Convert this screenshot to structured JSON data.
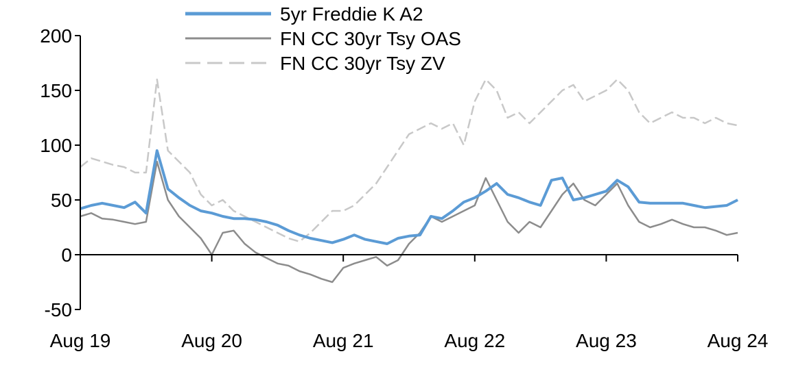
{
  "chart_data": {
    "type": "line",
    "title": "",
    "xlabel": "",
    "ylabel": "",
    "ylim": [
      -50,
      200
    ],
    "yticks": [
      "200",
      "150",
      "100",
      "50",
      "0",
      "-50"
    ],
    "ytick_values": [
      200,
      150,
      100,
      50,
      0,
      -50
    ],
    "xticks": [
      "Aug 19",
      "Aug 20",
      "Aug 21",
      "Aug 22",
      "Aug 23",
      "Aug 24"
    ],
    "x_frequency": "monthly, Aug 2019 to Aug 2024",
    "legend_position": "top-center",
    "series": [
      {
        "name": "5yr Freddie K A2",
        "color": "#5b9bd5",
        "style": "solid-thick",
        "values": [
          42,
          45,
          47,
          45,
          43,
          48,
          38,
          95,
          60,
          52,
          45,
          40,
          38,
          35,
          33,
          33,
          32,
          30,
          27,
          22,
          18,
          15,
          13,
          11,
          14,
          18,
          14,
          12,
          10,
          15,
          17,
          18,
          35,
          33,
          40,
          48,
          52,
          58,
          65,
          55,
          52,
          48,
          45,
          68,
          70,
          50,
          52,
          55,
          58,
          68,
          62,
          48,
          47,
          47,
          47,
          47,
          45,
          43,
          44,
          45,
          50
        ]
      },
      {
        "name": "FN CC 30yr Tsy OAS",
        "color": "#8c8c8c",
        "style": "solid",
        "values": [
          35,
          38,
          33,
          32,
          30,
          28,
          30,
          85,
          50,
          35,
          25,
          15,
          0,
          20,
          22,
          10,
          2,
          -3,
          -8,
          -10,
          -15,
          -18,
          -22,
          -25,
          -12,
          -8,
          -5,
          -2,
          -10,
          -5,
          10,
          20,
          35,
          30,
          35,
          40,
          45,
          70,
          50,
          30,
          20,
          30,
          25,
          40,
          55,
          65,
          50,
          45,
          55,
          65,
          45,
          30,
          25,
          28,
          32,
          28,
          25,
          25,
          22,
          18,
          20
        ]
      },
      {
        "name": "FN CC 30yr Tsy ZV",
        "color": "#c8c8c8",
        "style": "dashed",
        "values": [
          80,
          88,
          85,
          82,
          80,
          75,
          75,
          160,
          95,
          85,
          75,
          55,
          45,
          50,
          40,
          35,
          30,
          25,
          20,
          15,
          12,
          20,
          30,
          40,
          40,
          45,
          55,
          65,
          80,
          95,
          110,
          115,
          120,
          115,
          120,
          100,
          140,
          160,
          150,
          125,
          130,
          120,
          130,
          140,
          150,
          155,
          140,
          145,
          150,
          160,
          150,
          130,
          120,
          125,
          130,
          125,
          125,
          120,
          125,
          120,
          118
        ]
      }
    ]
  }
}
